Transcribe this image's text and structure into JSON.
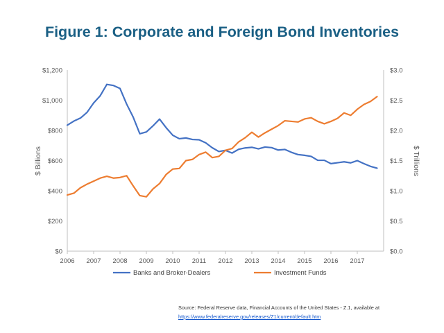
{
  "colors": {
    "title": "#1a5f84",
    "banks": "#4472c4",
    "funds": "#ed7d31",
    "axis": "#bfbfbf",
    "tick": "#595959"
  },
  "chart_data": {
    "type": "line",
    "title": "Figure 1: Corporate and Foreign Bond Inventories",
    "ylabel_left": "$ Billions",
    "ylabel_right": "$ Trillions",
    "y_left_range": [
      0,
      1200
    ],
    "y_right_range": [
      0.0,
      3.0
    ],
    "x_range": [
      2006,
      2018
    ],
    "x_ticks": [
      "2006",
      "2007",
      "2008",
      "2009",
      "2010",
      "2011",
      "2012",
      "2013",
      "2014",
      "2015",
      "2016",
      "2017"
    ],
    "y_left_ticks": [
      "$0",
      "$200",
      "$400",
      "$600",
      "$800",
      "$1,000",
      "$1,200"
    ],
    "y_right_ticks": [
      "$0.0",
      "$0.5",
      "$1.0",
      "$1.5",
      "$2.0",
      "$2.5",
      "$3.0"
    ],
    "grid": false,
    "legend_position": "bottom",
    "series": [
      {
        "name": "Banks and Broker-Dealers",
        "axis": "left",
        "color": "#4472c4",
        "x": [
          2006.0,
          2006.25,
          2006.5,
          2006.75,
          2007.0,
          2007.25,
          2007.5,
          2007.75,
          2008.0,
          2008.25,
          2008.5,
          2008.75,
          2009.0,
          2009.25,
          2009.5,
          2009.75,
          2010.0,
          2010.25,
          2010.5,
          2010.75,
          2011.0,
          2011.25,
          2011.5,
          2011.75,
          2012.0,
          2012.25,
          2012.5,
          2012.75,
          2013.0,
          2013.25,
          2013.5,
          2013.75,
          2014.0,
          2014.25,
          2014.5,
          2014.75,
          2015.0,
          2015.25,
          2015.5,
          2015.75,
          2016.0,
          2016.25,
          2016.5,
          2016.75,
          2017.0,
          2017.25,
          2017.5,
          2017.75
        ],
        "values": [
          835,
          862,
          882,
          920,
          982,
          1030,
          1105,
          1098,
          1078,
          975,
          888,
          778,
          790,
          830,
          875,
          818,
          768,
          745,
          750,
          740,
          738,
          718,
          685,
          660,
          668,
          650,
          675,
          684,
          688,
          678,
          690,
          686,
          670,
          674,
          655,
          640,
          635,
          628,
          602,
          602,
          580,
          586,
          592,
          585,
          600,
          580,
          562,
          550
        ]
      },
      {
        "name": "Investment Funds",
        "axis": "right",
        "color": "#ed7d31",
        "x": [
          2006.0,
          2006.25,
          2006.5,
          2006.75,
          2007.0,
          2007.25,
          2007.5,
          2007.75,
          2008.0,
          2008.25,
          2008.5,
          2008.75,
          2009.0,
          2009.25,
          2009.5,
          2009.75,
          2010.0,
          2010.25,
          2010.5,
          2010.75,
          2011.0,
          2011.25,
          2011.5,
          2011.75,
          2012.0,
          2012.25,
          2012.5,
          2012.75,
          2013.0,
          2013.25,
          2013.5,
          2013.75,
          2014.0,
          2014.25,
          2014.5,
          2014.75,
          2015.0,
          2015.25,
          2015.5,
          2015.75,
          2016.0,
          2016.25,
          2016.5,
          2016.75,
          2017.0,
          2017.25,
          2017.5,
          2017.75
        ],
        "values": [
          0.93,
          0.96,
          1.05,
          1.11,
          1.16,
          1.21,
          1.24,
          1.21,
          1.22,
          1.25,
          1.08,
          0.92,
          0.9,
          1.03,
          1.12,
          1.27,
          1.36,
          1.37,
          1.5,
          1.52,
          1.6,
          1.64,
          1.55,
          1.57,
          1.67,
          1.7,
          1.81,
          1.88,
          1.97,
          1.89,
          1.96,
          2.02,
          2.08,
          2.16,
          2.15,
          2.14,
          2.19,
          2.21,
          2.15,
          2.11,
          2.15,
          2.2,
          2.29,
          2.25,
          2.35,
          2.43,
          2.48,
          2.56
        ]
      }
    ]
  },
  "source": {
    "text": "Source:  Federal Reserve data, Financial Accounts of the United States - Z.1, available at",
    "link": "https://www.federalreserve.gov/releases/Z1/current/default.htm"
  }
}
